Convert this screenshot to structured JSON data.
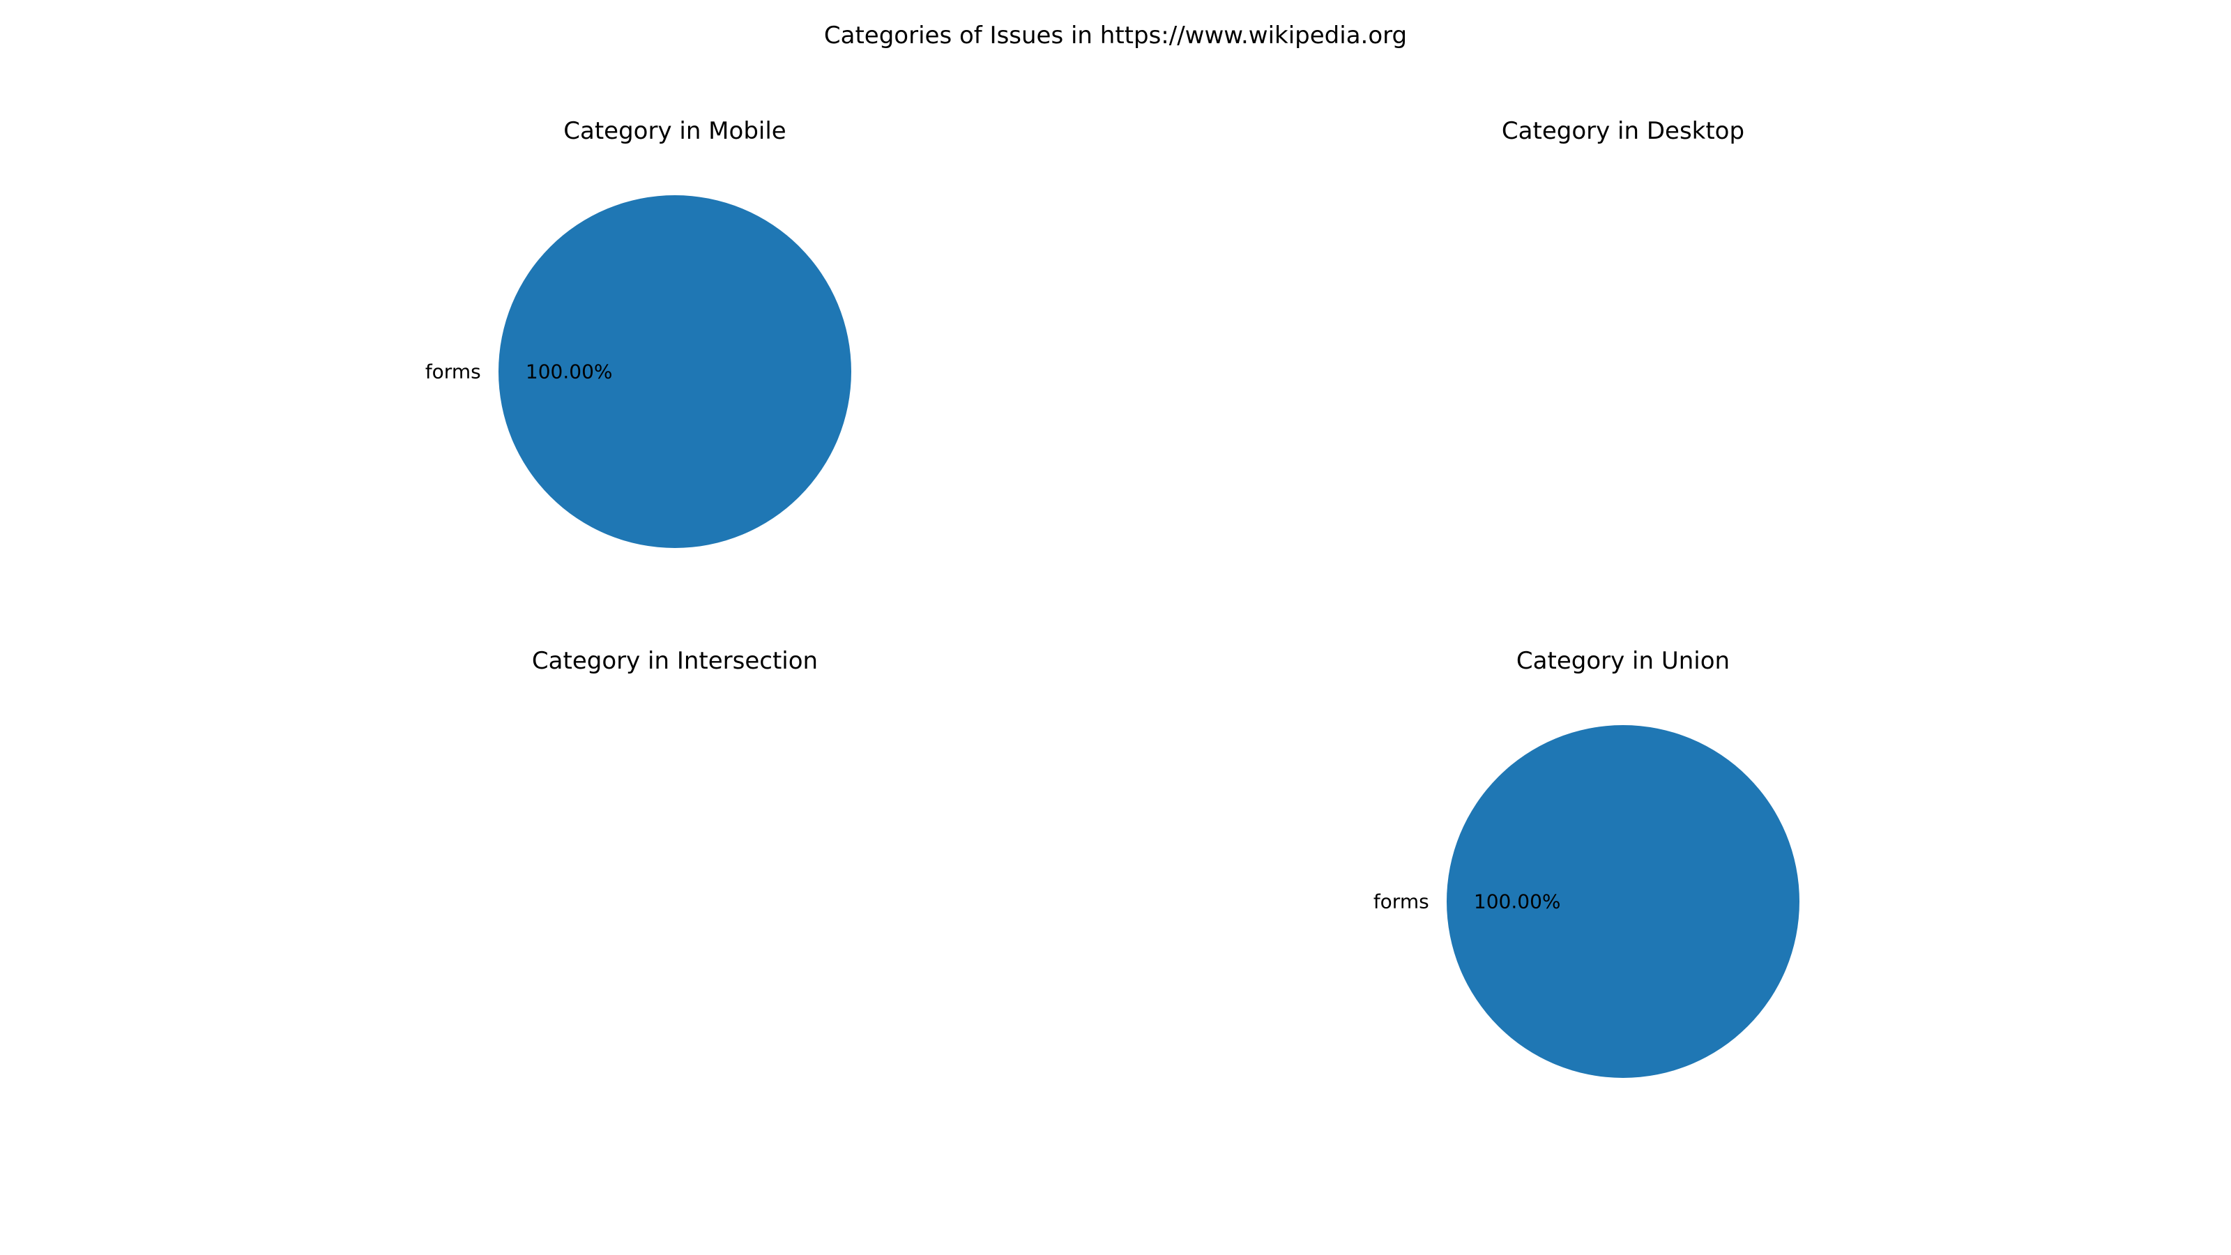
{
  "figure": {
    "title": "Categories of Issues in https://www.wikipedia.org"
  },
  "colors": {
    "slice": "#1f77b4"
  },
  "chart_data": [
    {
      "type": "pie",
      "title": "Category in Mobile",
      "slices": [
        {
          "label": "forms",
          "value": 100.0,
          "display": "100.00%"
        }
      ]
    },
    {
      "type": "pie",
      "title": "Category in Desktop",
      "slices": []
    },
    {
      "type": "pie",
      "title": "Category in Intersection",
      "slices": []
    },
    {
      "type": "pie",
      "title": "Category in Union",
      "slices": [
        {
          "label": "forms",
          "value": 100.0,
          "display": "100.00%"
        }
      ]
    }
  ]
}
